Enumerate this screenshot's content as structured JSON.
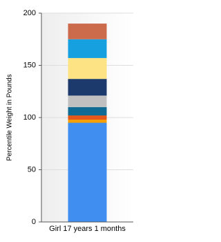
{
  "chart_data": {
    "type": "stacked_bar",
    "y_label": "Percentile Weight in Pounds",
    "categories": [
      "Girl 17 years 1 months"
    ],
    "series": [
      {
        "color": "#3f8ef0",
        "values": [
          95
        ]
      },
      {
        "color": "#f5a000",
        "values": [
          3
        ]
      },
      {
        "color": "#e2581b",
        "values": [
          4
        ]
      },
      {
        "color": "#0f6b93",
        "values": [
          8
        ]
      },
      {
        "color": "#c0c0c0",
        "values": [
          11
        ]
      },
      {
        "color": "#1c3a6b",
        "values": [
          16
        ]
      },
      {
        "color": "#fde383",
        "values": [
          20
        ]
      },
      {
        "color": "#16a0e0",
        "values": [
          18
        ]
      },
      {
        "color": "#cc6a4c",
        "values": [
          15
        ]
      }
    ],
    "ylim": [
      0,
      200
    ],
    "yticks": [
      0,
      50,
      100,
      150,
      200
    ],
    "grid": true
  }
}
